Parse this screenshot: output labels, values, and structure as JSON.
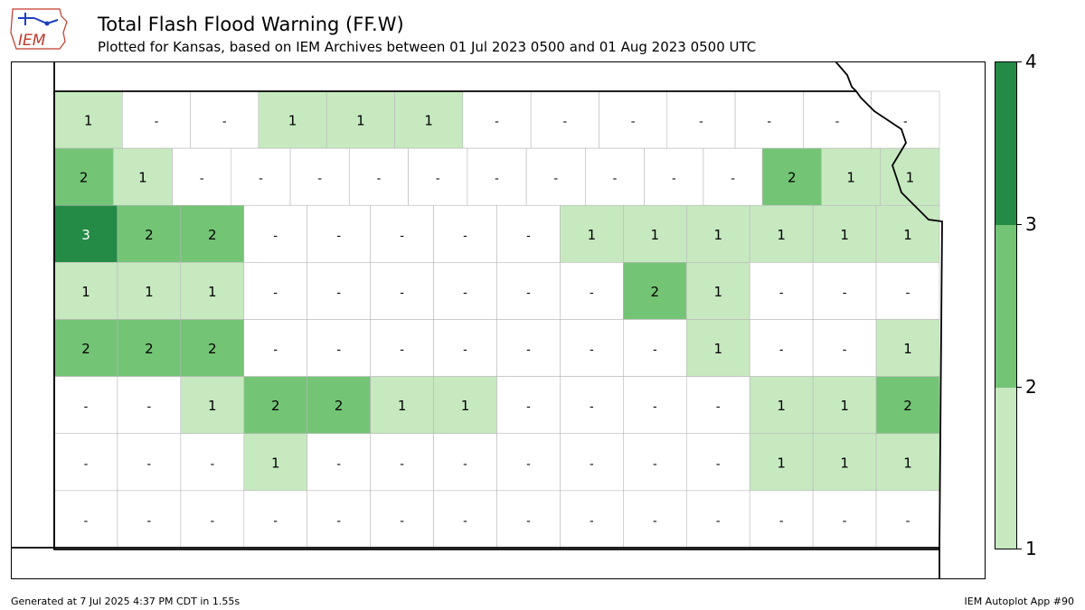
{
  "header": {
    "logo_text": "IEM",
    "title": "Total Flash Flood Warning (FF.W)",
    "subtitle": "Plotted for Kansas, based on IEM Archives  between 01 Jul 2023 0500 and 01 Aug 2023 0500 UTC"
  },
  "legend": {
    "colors": {
      "c1": "#c7e9c0",
      "c2": "#74c476",
      "c3": "#238b45",
      "none": "#ffffff"
    },
    "ticks": [
      "1",
      "2",
      "3",
      "4"
    ]
  },
  "footer": {
    "generated": "Generated at 7 Jul 2025 4:37 PM CDT in 1.55s",
    "app": "IEM Autoplot App #90"
  },
  "map": {
    "rows": [
      [
        "1",
        "-",
        "-",
        "1",
        "1",
        "1",
        "-",
        "-",
        "-",
        "-",
        "-",
        "-",
        "-"
      ],
      [
        "2",
        "1",
        "-",
        "-",
        "-",
        "-",
        "-",
        "-",
        "-",
        "-",
        "-",
        "-",
        "2",
        "1",
        "1"
      ],
      [
        "3",
        "2",
        "2",
        "-",
        "-",
        "-",
        "-",
        "-",
        "1",
        "1",
        "1",
        "1",
        "1",
        "1"
      ],
      [
        "1",
        "1",
        "1",
        "-",
        "-",
        "-",
        "-",
        "-",
        "-",
        "2",
        "1",
        "-",
        "-",
        "-"
      ],
      [
        "2",
        "2",
        "2",
        "-",
        "-",
        "-",
        "-",
        "-",
        "-",
        "-",
        "1",
        "-",
        "-",
        "1"
      ],
      [
        "-",
        "-",
        "1",
        "2",
        "2",
        "1",
        "1",
        "-",
        "-",
        "-",
        "-",
        "1",
        "1",
        "2"
      ],
      [
        "-",
        "-",
        "-",
        "1",
        "-",
        "-",
        "-",
        "-",
        "-",
        "-",
        "-",
        "1",
        "1",
        "1"
      ],
      [
        "-",
        "-",
        "-",
        "-",
        "-",
        "-",
        "-",
        "-",
        "-",
        "-",
        "-",
        "-",
        "-",
        "-"
      ]
    ]
  }
}
